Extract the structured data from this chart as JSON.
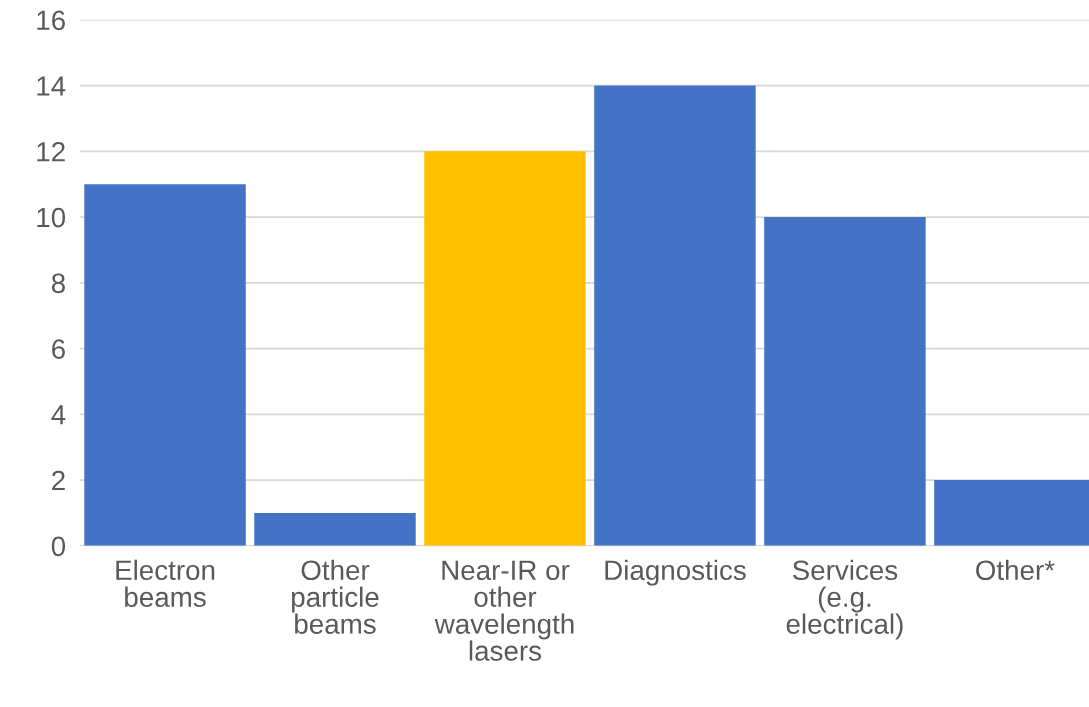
{
  "chart_data": {
    "type": "bar",
    "categories": [
      "Electron\nbeams",
      "Other\nparticle\nbeams",
      "Near-IR or\nother\nwavelength\nlasers",
      "Diagnostics",
      "Services\n(e.g.\nelectrical)",
      "Other*"
    ],
    "values": [
      11,
      1,
      12,
      14,
      10,
      2
    ],
    "colors": [
      "#4472c4",
      "#4472c4",
      "#ffc000",
      "#4472c4",
      "#4472c4",
      "#4472c4"
    ],
    "ylim": [
      0,
      16
    ],
    "yticks": [
      0,
      2,
      4,
      6,
      8,
      10,
      12,
      14,
      16
    ],
    "grid": "y",
    "legend": false
  }
}
